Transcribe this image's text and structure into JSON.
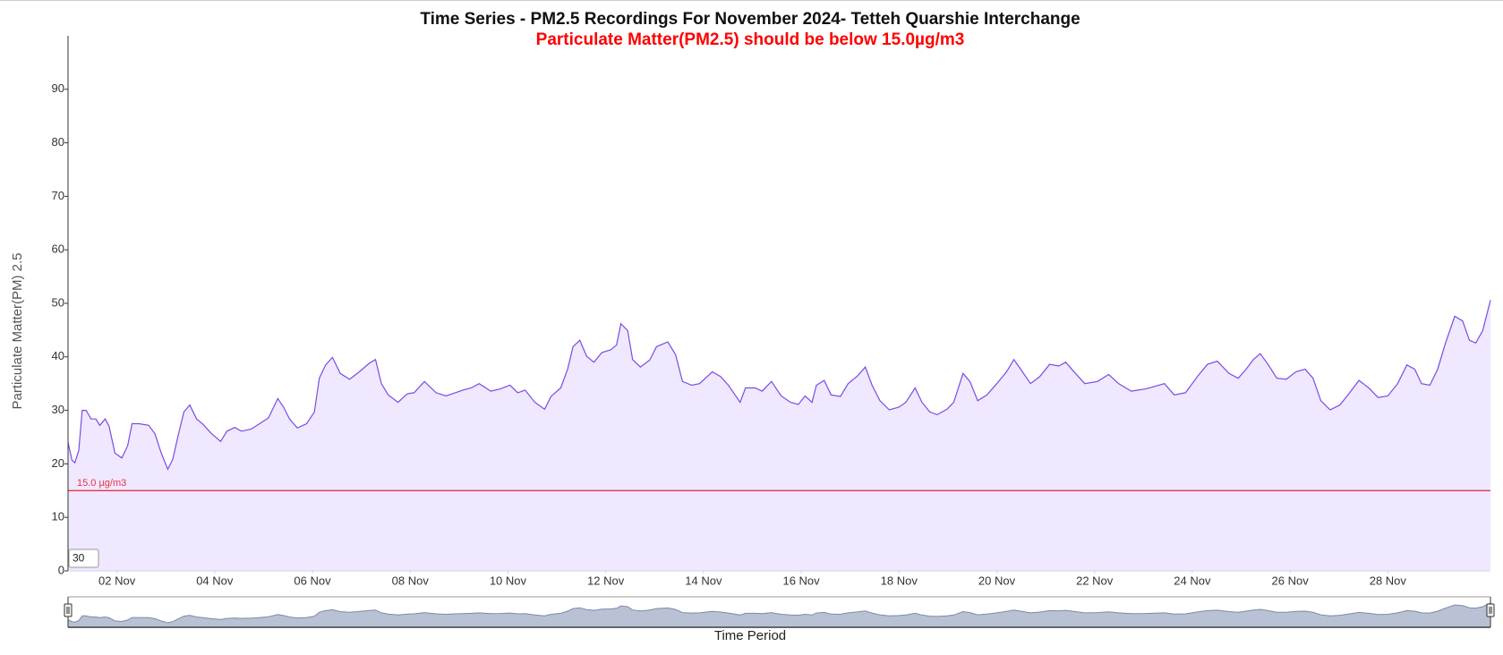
{
  "chart_data": {
    "type": "area",
    "title": "Time Series - PM2.5 Recordings For November 2024- Tetteh Quarshie Interchange",
    "subtitle": "Particulate Matter(PM2.5) should be below 15.0µg/m3",
    "ylabel": "Particulate Matter(PM) 2.5",
    "xlabel": "Time Period",
    "zoom_input": "30",
    "color": "#7b4ae8",
    "fill": "#efe8fe",
    "navigator_color": "#7d8aa8",
    "navigator_fill": "#b9c2d4",
    "threshold": {
      "value": 15,
      "label": "15.0 µg/m3",
      "color": "#e8334a"
    },
    "xlim": [
      1,
      30.1
    ],
    "xticks": [
      {
        "value": 2,
        "label": "02 Nov"
      },
      {
        "value": 4,
        "label": "04 Nov"
      },
      {
        "value": 6,
        "label": "06 Nov"
      },
      {
        "value": 8,
        "label": "08 Nov"
      },
      {
        "value": 10,
        "label": "10 Nov"
      },
      {
        "value": 12,
        "label": "12 Nov"
      },
      {
        "value": 14,
        "label": "14 Nov"
      },
      {
        "value": 16,
        "label": "16 Nov"
      },
      {
        "value": 18,
        "label": "18 Nov"
      },
      {
        "value": 20,
        "label": "20 Nov"
      },
      {
        "value": 22,
        "label": "22 Nov"
      },
      {
        "value": 24,
        "label": "24 Nov"
      },
      {
        "value": 26,
        "label": "26 Nov"
      },
      {
        "value": 28,
        "label": "28 Nov"
      }
    ],
    "ylim": [
      0,
      100
    ],
    "yticks": [
      0,
      10,
      20,
      30,
      40,
      50,
      60,
      70,
      80,
      90
    ],
    "x": [
      1.0,
      1.08,
      1.14,
      1.22,
      1.29,
      1.37,
      1.47,
      1.57,
      1.65,
      1.76,
      1.84,
      1.96,
      2.1,
      2.22,
      2.31,
      2.45,
      2.65,
      2.78,
      2.9,
      3.04,
      3.14,
      3.25,
      3.37,
      3.49,
      3.63,
      3.76,
      3.92,
      4.12,
      4.25,
      4.41,
      4.55,
      4.75,
      4.9,
      5.1,
      5.29,
      5.41,
      5.53,
      5.69,
      5.88,
      6.04,
      6.14,
      6.27,
      6.41,
      6.57,
      6.76,
      6.96,
      7.16,
      7.29,
      7.41,
      7.55,
      7.75,
      7.94,
      8.08,
      8.29,
      8.53,
      8.73,
      8.92,
      9.08,
      9.25,
      9.41,
      9.65,
      9.84,
      10.04,
      10.2,
      10.35,
      10.55,
      10.75,
      10.88,
      11.08,
      11.22,
      11.33,
      11.47,
      11.61,
      11.76,
      11.92,
      12.1,
      12.22,
      12.31,
      12.45,
      12.55,
      12.71,
      12.9,
      13.04,
      13.27,
      13.43,
      13.57,
      13.76,
      13.92,
      14.18,
      14.35,
      14.51,
      14.75,
      14.86,
      15.06,
      15.2,
      15.39,
      15.59,
      15.78,
      15.94,
      16.08,
      16.22,
      16.31,
      16.47,
      16.61,
      16.8,
      16.96,
      17.16,
      17.31,
      17.45,
      17.61,
      17.8,
      18.0,
      18.14,
      18.33,
      18.47,
      18.63,
      18.78,
      18.98,
      19.12,
      19.31,
      19.45,
      19.61,
      19.8,
      20.0,
      20.2,
      20.35,
      20.49,
      20.69,
      20.88,
      21.08,
      21.27,
      21.41,
      21.61,
      21.8,
      22.06,
      22.29,
      22.49,
      22.75,
      23.04,
      23.24,
      23.43,
      23.63,
      23.86,
      24.12,
      24.31,
      24.51,
      24.75,
      24.94,
      25.1,
      25.25,
      25.39,
      25.55,
      25.73,
      25.92,
      26.12,
      26.31,
      26.47,
      26.63,
      26.82,
      27.02,
      27.22,
      27.41,
      27.61,
      27.8,
      28.0,
      28.2,
      28.39,
      28.55,
      28.69,
      28.86,
      29.02,
      29.18,
      29.37,
      29.53,
      29.67,
      29.8,
      29.94,
      30.1
    ],
    "values": [
      24,
      20.7,
      20.2,
      22.5,
      30,
      30,
      28.4,
      28.4,
      27.2,
      28.4,
      27,
      22,
      21.1,
      23.4,
      27.5,
      27.5,
      27.2,
      25.6,
      22.2,
      19,
      20.8,
      25.2,
      29.7,
      31,
      28.4,
      27.4,
      25.8,
      24.2,
      26.1,
      26.8,
      26.1,
      26.5,
      27.4,
      28.6,
      32.2,
      30.6,
      28.4,
      26.7,
      27.5,
      29.7,
      36,
      38.5,
      39.9,
      36.9,
      35.8,
      37.2,
      38.8,
      39.5,
      35,
      32.9,
      31.5,
      33.1,
      33.3,
      35.4,
      33.3,
      32.7,
      33.3,
      33.8,
      34.2,
      35,
      33.6,
      34,
      34.7,
      33.3,
      33.8,
      31.5,
      30.2,
      32.6,
      34.2,
      37.7,
      41.9,
      43.1,
      40.1,
      39,
      40.8,
      41.3,
      42.2,
      46.2,
      44.9,
      39.5,
      38.1,
      39.4,
      41.9,
      42.8,
      40.4,
      35.4,
      34.7,
      35,
      37.2,
      36.3,
      34.7,
      31.5,
      34.2,
      34.2,
      33.6,
      35.4,
      32.7,
      31.5,
      31.1,
      32.7,
      31.5,
      34.7,
      35.6,
      32.9,
      32.6,
      35,
      36.5,
      38.1,
      34.7,
      31.8,
      30.1,
      30.6,
      31.5,
      34.2,
      31.5,
      29.7,
      29.2,
      30.2,
      31.5,
      36.9,
      35.4,
      31.8,
      32.9,
      35,
      37.2,
      39.5,
      37.7,
      35,
      36.3,
      38.6,
      38.3,
      39,
      36.9,
      35,
      35.4,
      36.7,
      35,
      33.6,
      34,
      34.5,
      35,
      32.9,
      33.3,
      36.5,
      38.6,
      39.2,
      36.9,
      36,
      37.7,
      39.5,
      40.6,
      38.6,
      36,
      35.8,
      37.2,
      37.7,
      36,
      31.8,
      30.1,
      31,
      33.3,
      35.6,
      34.2,
      32.4,
      32.7,
      35,
      38.5,
      37.7,
      35,
      34.7,
      37.7,
      42.6,
      47.6,
      46.7,
      43.1,
      42.6,
      44.9,
      50.6
    ]
  }
}
